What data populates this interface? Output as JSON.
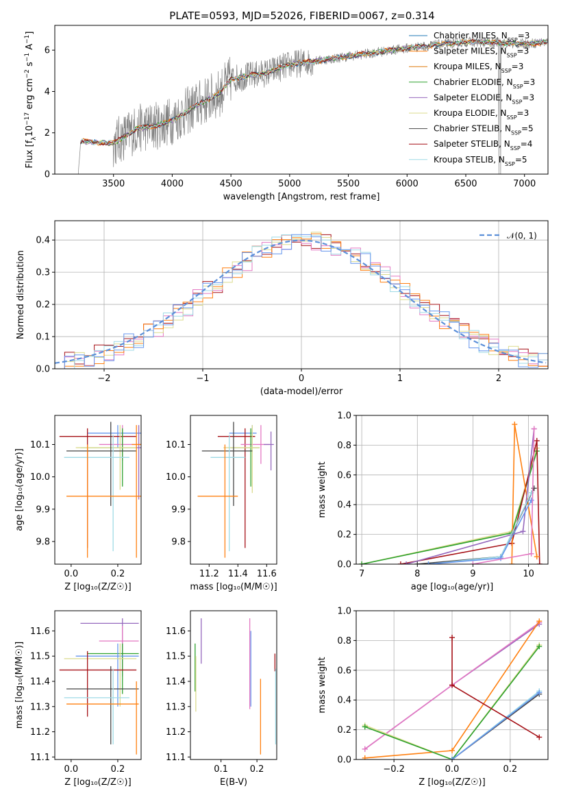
{
  "title": "PLATE=0593, MJD=52026, FIBERID=0067, z=0.314",
  "colors": {
    "Chabrier MILES": "#1f77b4",
    "Salpeter MILES": "#ff7f0e",
    "Kroupa MILES": "#ff7f0e",
    "Chabrier ELODIE": "#2ca02c",
    "Salpeter ELODIE": "#9467bd",
    "Kroupa ELODIE": "#dbdb8d",
    "Chabrier STELIB": "#444444",
    "Salpeter STELIB": "#a50f15",
    "Kroupa STELIB": "#9edae5",
    "pink": "#e377c2",
    "blue": "#6495ed",
    "data": "#808080"
  },
  "chart_data": [
    {
      "id": "spectrum",
      "type": "line",
      "xlabel": "wavelength [Angstrom, rest frame]",
      "ylabel_parts": [
        "Flux [f",
        "λ",
        "10",
        "−17",
        " erg cm",
        "−2",
        " s",
        "−1",
        " A",
        "−1",
        "]"
      ],
      "xlim": [
        3000,
        7200
      ],
      "ylim": [
        0,
        7.2
      ],
      "xticks": [
        "3500",
        "4000",
        "4500",
        "5000",
        "5500",
        "6000",
        "6500",
        "7000"
      ],
      "xtick_values": [
        3500,
        4000,
        4500,
        5000,
        5500,
        6000,
        6500,
        7000
      ],
      "yticks": [
        "0",
        "2",
        "4",
        "6"
      ],
      "ytick_values": [
        0,
        2,
        4,
        6
      ],
      "data_anchor": {
        "x": [
          3200,
          3220,
          3300,
          3500,
          3700,
          3900,
          4000,
          4200,
          4400,
          4500,
          4800,
          5000,
          5500,
          6000,
          6500,
          7000,
          7200
        ],
        "y": [
          0,
          1.6,
          1.55,
          1.5,
          2.2,
          2.4,
          2.6,
          3.3,
          3.9,
          4.6,
          4.9,
          5.3,
          5.7,
          6.1,
          6.4,
          6.3,
          6.4
        ]
      },
      "legend": [
        {
          "label": "Chabrier MILES, N",
          "sub": "SSP",
          "tail": "=3",
          "color": "#1f77b4"
        },
        {
          "label": "Salpeter MILES, N",
          "sub": "SSP",
          "tail": "=3",
          "color": "#ff7f0e"
        },
        {
          "label": "Kroupa MILES, N",
          "sub": "SSP",
          "tail": "=3",
          "color": "#e07b10"
        },
        {
          "label": "Chabrier ELODIE, N",
          "sub": "SSP",
          "tail": "=3",
          "color": "#2ca02c"
        },
        {
          "label": "Salpeter ELODIE, N",
          "sub": "SSP",
          "tail": "=3",
          "color": "#9467bd"
        },
        {
          "label": "Kroupa ELODIE, N",
          "sub": "SSP",
          "tail": "=3",
          "color": "#dbdb8d"
        },
        {
          "label": "Chabrier STELIB, N",
          "sub": "SSP",
          "tail": "=5",
          "color": "#444444"
        },
        {
          "label": "Salpeter STELIB, N",
          "sub": "SSP",
          "tail": "=4",
          "color": "#a50f15"
        },
        {
          "label": "Kroupa STELIB, N",
          "sub": "SSP",
          "tail": "=5",
          "color": "#9edae5"
        }
      ]
    },
    {
      "id": "residuals",
      "type": "histogram",
      "xlabel": "(data-model)/error",
      "ylabel": "Normed distribution",
      "xlim": [
        -2.5,
        2.5
      ],
      "ylim": [
        0,
        0.46
      ],
      "xticks": [
        "−2",
        "−1",
        "0",
        "1",
        "2"
      ],
      "xtick_values": [
        -2,
        -1,
        0,
        1,
        2
      ],
      "yticks": [
        "0.0",
        "0.1",
        "0.2",
        "0.3",
        "0.4"
      ],
      "ytick_values": [
        0,
        0.1,
        0.2,
        0.3,
        0.4
      ],
      "grid": true,
      "legend_label": "𝒩(0, 1)",
      "legend_position": "top-right",
      "series_colors": [
        "#a50f15",
        "#e377c2",
        "#dbdb8d",
        "#ff7f0e",
        "#9edae5",
        "#6495ed"
      ]
    },
    {
      "id": "age_vs_Z",
      "type": "errorbar",
      "xlabel": "Z [log₁₀(Z/Z☉)]",
      "ylabel": "age  [log₁₀(age/yr)]",
      "xlim": [
        -0.07,
        0.3
      ],
      "ylim": [
        9.73,
        10.19
      ],
      "xticks": [
        "0.0",
        "0.2"
      ],
      "xtick_values": [
        0,
        0.2
      ],
      "yticks": [
        "9.8",
        "9.9",
        "10.0",
        "10.1"
      ],
      "ytick_values": [
        9.8,
        9.9,
        10.0,
        10.1
      ],
      "points": [
        {
          "x": 0.2,
          "xl": 0.07,
          "xh": 0.3,
          "y": 10.135,
          "yl": 10.09,
          "yh": 10.16,
          "c": "#6495ed"
        },
        {
          "x": 0.07,
          "xl": -0.05,
          "xh": 0.28,
          "y": 10.125,
          "yl": 9.78,
          "yh": 10.15,
          "c": "#a50f15"
        },
        {
          "x": 0.22,
          "xl": 0.12,
          "xh": 0.3,
          "y": 10.1,
          "yl": 10.05,
          "yh": 10.16,
          "c": "#e377c2"
        },
        {
          "x": 0.22,
          "xl": 0.04,
          "xh": 0.28,
          "y": 10.09,
          "yl": 9.97,
          "yh": 10.15,
          "c": "#2ca02c"
        },
        {
          "x": 0.21,
          "xl": 0.02,
          "xh": 0.28,
          "y": 10.09,
          "yl": 9.96,
          "yh": 10.16,
          "c": "#dbdb8d"
        },
        {
          "x": 0.17,
          "xl": -0.02,
          "xh": 0.28,
          "y": 10.08,
          "yl": 9.91,
          "yh": 10.17,
          "c": "#444444"
        },
        {
          "x": 0.18,
          "xl": -0.03,
          "xh": 0.25,
          "y": 10.06,
          "yl": 9.77,
          "yh": 10.13,
          "c": "#9edae5"
        },
        {
          "x": 0.29,
          "xl": 0.28,
          "xh": 0.3,
          "y": 10.09,
          "yl": 9.93,
          "yh": 10.16,
          "c": "#9467bd"
        },
        {
          "x": 0.07,
          "xl": -0.02,
          "xh": 0.3,
          "y": 9.94,
          "yl": 9.75,
          "yh": 10.1,
          "c": "#ff7f0e"
        },
        {
          "x": 0.28,
          "xl": 0.26,
          "xh": 0.3,
          "y": 10.1,
          "yl": 9.75,
          "yh": 10.16,
          "c": "#ff7f0e"
        }
      ]
    },
    {
      "id": "age_vs_mass",
      "type": "errorbar",
      "xlabel": "mass [log₁₀(M/M☉)]",
      "xlim": [
        11.07,
        11.67
      ],
      "ylim": [
        9.73,
        10.19
      ],
      "xticks": [
        "11.2",
        "11.4",
        "11.6"
      ],
      "xtick_values": [
        11.2,
        11.4,
        11.6
      ],
      "yticks": [
        "9.8",
        "9.9",
        "10.0",
        "10.1"
      ],
      "ytick_values": [
        9.8,
        9.9,
        10.0,
        10.1
      ],
      "points": [
        {
          "x": 11.5,
          "xl": 11.34,
          "xh": 11.53,
          "y": 10.135,
          "yl": 10.09,
          "yh": 10.16,
          "c": "#6495ed"
        },
        {
          "x": 11.45,
          "xl": 11.26,
          "xh": 11.52,
          "y": 10.125,
          "yl": 9.78,
          "yh": 10.15,
          "c": "#a50f15"
        },
        {
          "x": 11.56,
          "xl": 11.42,
          "xh": 11.62,
          "y": 10.1,
          "yl": 10.04,
          "yh": 10.16,
          "c": "#e377c2"
        },
        {
          "x": 11.49,
          "xl": 11.35,
          "xh": 11.55,
          "y": 10.09,
          "yl": 9.97,
          "yh": 10.15,
          "c": "#2ca02c"
        },
        {
          "x": 11.5,
          "xl": 11.3,
          "xh": 11.55,
          "y": 10.09,
          "yl": 9.95,
          "yh": 10.16,
          "c": "#dbdb8d"
        },
        {
          "x": 11.37,
          "xl": 11.15,
          "xh": 11.5,
          "y": 10.08,
          "yl": 9.91,
          "yh": 10.17,
          "c": "#444444"
        },
        {
          "x": 11.34,
          "xl": 11.21,
          "xh": 11.45,
          "y": 10.06,
          "yl": 9.77,
          "yh": 10.13,
          "c": "#9edae5"
        },
        {
          "x": 11.63,
          "xl": 11.58,
          "xh": 11.65,
          "y": 10.1,
          "yl": 10.02,
          "yh": 10.14,
          "c": "#9467bd"
        },
        {
          "x": 11.31,
          "xl": 11.12,
          "xh": 11.4,
          "y": 9.94,
          "yl": 9.75,
          "yh": 10.1,
          "c": "#ff7f0e"
        }
      ]
    },
    {
      "id": "mass_weight_vs_age",
      "type": "line",
      "xlabel": "age  [log₁₀(age/yr)]",
      "ylabel": "mass weight",
      "xlim": [
        6.9,
        10.35
      ],
      "ylim": [
        0,
        1
      ],
      "xticks": [
        "7",
        "8",
        "9",
        "10"
      ],
      "xtick_values": [
        7,
        8,
        9,
        10
      ],
      "yticks": [
        "0.0",
        "0.2",
        "0.4",
        "0.6",
        "0.8",
        "1.0"
      ],
      "ytick_values": [
        0,
        0.2,
        0.4,
        0.6,
        0.8,
        1
      ],
      "grid": true,
      "series": [
        {
          "c": "#dbdb8d",
          "x": [
            7.0,
            9.7,
            10.15
          ],
          "y": [
            0.0,
            0.22,
            0.78
          ]
        },
        {
          "c": "#2ca02c",
          "x": [
            7.0,
            9.7,
            10.15
          ],
          "y": [
            0.0,
            0.21,
            0.76
          ]
        },
        {
          "c": "#a50f15",
          "x": [
            7.7,
            9.7,
            10.15,
            10.2
          ],
          "y": [
            0.0,
            0.14,
            0.83,
            0.0
          ]
        },
        {
          "c": "#ff7f0e",
          "x": [
            9.7,
            9.75,
            10.15
          ],
          "y": [
            0.0,
            0.94,
            0.05
          ]
        },
        {
          "c": "#9467bd",
          "x": [
            7.8,
            9.9,
            10.1
          ],
          "y": [
            0.0,
            0.22,
            0.91
          ]
        },
        {
          "c": "#444444",
          "x": [
            8.0,
            9.5,
            10.1
          ],
          "y": [
            0.0,
            0.05,
            0.51
          ]
        },
        {
          "c": "#9edae5",
          "x": [
            8.2,
            9.5,
            10.05
          ],
          "y": [
            0.0,
            0.05,
            0.48
          ]
        },
        {
          "c": "#6495ed",
          "x": [
            8.2,
            9.5,
            10.05
          ],
          "y": [
            0.0,
            0.04,
            0.43
          ]
        },
        {
          "c": "#e377c2",
          "x": [
            9.0,
            10.05,
            10.1
          ],
          "y": [
            0.0,
            0.07,
            0.91
          ]
        }
      ]
    },
    {
      "id": "mass_vs_Z",
      "type": "errorbar",
      "xlabel": "Z [log₁₀(Z/Z☉)]",
      "ylabel": "mass [log₁₀(M/M☉)]",
      "xlim": [
        -0.07,
        0.3
      ],
      "ylim": [
        11.09,
        11.68
      ],
      "xticks": [
        "0.0",
        "0.2"
      ],
      "xtick_values": [
        0,
        0.2
      ],
      "yticks": [
        "11.1",
        "11.2",
        "11.3",
        "11.4",
        "11.5",
        "11.6"
      ],
      "ytick_values": [
        11.1,
        11.2,
        11.3,
        11.4,
        11.5,
        11.6
      ],
      "points": [
        {
          "x": 0.22,
          "xl": 0.04,
          "xh": 0.29,
          "y": 11.63,
          "yl": 11.42,
          "yh": 11.65,
          "c": "#9467bd"
        },
        {
          "x": 0.22,
          "xl": 0.12,
          "xh": 0.29,
          "y": 11.56,
          "yl": 11.44,
          "yh": 11.62,
          "c": "#e377c2"
        },
        {
          "x": 0.22,
          "xl": 0.07,
          "xh": 0.29,
          "y": 11.51,
          "yl": 11.35,
          "yh": 11.55,
          "c": "#2ca02c"
        },
        {
          "x": 0.2,
          "xl": 0.02,
          "xh": 0.29,
          "y": 11.5,
          "yl": 11.3,
          "yh": 11.55,
          "c": "#6495ed"
        },
        {
          "x": 0.21,
          "xl": -0.03,
          "xh": 0.28,
          "y": 11.49,
          "yl": 11.3,
          "yh": 11.55,
          "c": "#dbdb8d"
        },
        {
          "x": 0.07,
          "xl": -0.05,
          "xh": 0.28,
          "y": 11.445,
          "yl": 11.26,
          "yh": 11.52,
          "c": "#a50f15"
        },
        {
          "x": 0.17,
          "xl": -0.02,
          "xh": 0.29,
          "y": 11.37,
          "yl": 11.15,
          "yh": 11.46,
          "c": "#444444"
        },
        {
          "x": 0.18,
          "xl": -0.03,
          "xh": 0.25,
          "y": 11.335,
          "yl": 11.15,
          "yh": 11.45,
          "c": "#9edae5"
        },
        {
          "x": 0.28,
          "xl": -0.02,
          "xh": 0.29,
          "y": 11.31,
          "yl": 11.11,
          "yh": 11.4,
          "c": "#ff7f0e"
        }
      ]
    },
    {
      "id": "mass_vs_EBV",
      "type": "errorbar",
      "xlabel": "E(B-V)",
      "xlim": [
        0.015,
        0.255
      ],
      "ylim": [
        11.09,
        11.68
      ],
      "xticks": [
        "0.1",
        "0.2"
      ],
      "xtick_values": [
        0.1,
        0.2
      ],
      "yticks": [
        "11.1",
        "11.2",
        "11.3",
        "11.4",
        "11.5",
        "11.6"
      ],
      "ytick_values": [
        11.1,
        11.2,
        11.3,
        11.4,
        11.5,
        11.6
      ],
      "points": [
        {
          "x": 0.045,
          "yl": 11.47,
          "yh": 11.65,
          "c": "#9467bd"
        },
        {
          "x": 0.028,
          "yl": 11.36,
          "yh": 11.55,
          "c": "#2ca02c"
        },
        {
          "x": 0.03,
          "yl": 11.28,
          "yh": 11.5,
          "c": "#dbdb8d"
        },
        {
          "x": 0.18,
          "yl": 11.29,
          "yh": 11.65,
          "c": "#e377c2"
        },
        {
          "x": 0.183,
          "yl": 11.3,
          "yh": 11.6,
          "c": "#6495ed"
        },
        {
          "x": 0.21,
          "yl": 11.11,
          "yh": 11.41,
          "c": "#ff7f0e"
        },
        {
          "x": 0.25,
          "yl": 11.44,
          "yh": 11.51,
          "c": "#a50f15"
        },
        {
          "x": 0.252,
          "yl": 11.15,
          "yh": 11.45,
          "c": "#9edae5"
        }
      ]
    },
    {
      "id": "mass_weight_vs_Z",
      "type": "line",
      "xlabel": "Z [log₁₀(Z/Z☉)]",
      "ylabel": "mass weight",
      "xlim": [
        -0.33,
        0.33
      ],
      "ylim": [
        0,
        1
      ],
      "xticks": [
        "−0.2",
        "0.0",
        "0.2"
      ],
      "xtick_values": [
        -0.2,
        0,
        0.2
      ],
      "yticks": [
        "0.0",
        "0.2",
        "0.4",
        "0.6",
        "0.8",
        "1.0"
      ],
      "ytick_values": [
        0,
        0.2,
        0.4,
        0.6,
        0.8,
        1
      ],
      "grid": true,
      "series": [
        {
          "c": "#9467bd",
          "x": [
            -0.3,
            0.0,
            0.3
          ],
          "y": [
            0.07,
            0.5,
            0.91
          ]
        },
        {
          "c": "#e377c2",
          "x": [
            -0.3,
            0.0,
            0.3
          ],
          "y": [
            0.07,
            0.5,
            0.92
          ]
        },
        {
          "c": "#ff7f0e",
          "x": [
            -0.3,
            0.0,
            0.3
          ],
          "y": [
            0.01,
            0.06,
            0.93
          ]
        },
        {
          "c": "#dbdb8d",
          "x": [
            -0.3,
            0.0,
            0.3
          ],
          "y": [
            0.23,
            0.0,
            0.77
          ]
        },
        {
          "c": "#2ca02c",
          "x": [
            -0.3,
            0.0,
            0.3
          ],
          "y": [
            0.22,
            0.0,
            0.76
          ]
        },
        {
          "c": "#444444",
          "x": [
            0.0,
            0.3
          ],
          "y": [
            0.0,
            0.44
          ]
        },
        {
          "c": "#9edae5",
          "x": [
            0.0,
            0.3
          ],
          "y": [
            0.0,
            0.46
          ]
        },
        {
          "c": "#6495ed",
          "x": [
            0.0,
            0.3
          ],
          "y": [
            0.0,
            0.45
          ]
        },
        {
          "c": "#a50f15",
          "x": [
            0.0,
            0.0,
            0.3
          ],
          "y": [
            0.82,
            0.5,
            0.15
          ]
        }
      ]
    }
  ]
}
